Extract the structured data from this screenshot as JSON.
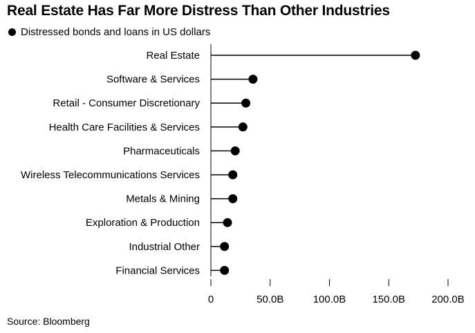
{
  "title": "Real Estate Has Far More Distress Than Other Industries",
  "legend_label": "Distressed bonds and loans in US dollars",
  "source": "Source: Bloomberg",
  "marker_color": "#000000",
  "chart_data": {
    "type": "lollipop",
    "title": "Real Estate Has Far More Distress Than Other Industries",
    "series": [
      {
        "name": "Distressed bonds and loans in US dollars"
      }
    ],
    "categories": [
      "Real Estate",
      "Software & Services",
      "Retail - Consumer Discretionary",
      "Health Care Facilities & Services",
      "Pharmaceuticals",
      "Wireless Telecommunications Services",
      "Metals & Mining",
      "Exploration & Production",
      "Industrial Other",
      "Financial Services"
    ],
    "values": [
      172.5,
      35.5,
      29.5,
      27,
      20.5,
      18.5,
      18.5,
      14,
      11.5,
      11.5
    ],
    "unit": "billion USD",
    "xlim": [
      0,
      200
    ],
    "xticks": [
      0,
      50,
      100,
      150,
      200
    ],
    "xtick_labels": [
      "0",
      "50.0B",
      "100.0B",
      "150.0B",
      "200.0B"
    ],
    "grid": false,
    "legend_position": "top-left"
  }
}
